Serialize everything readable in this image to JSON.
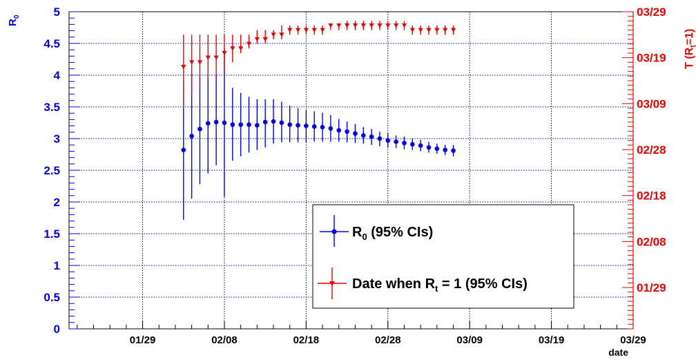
{
  "colors": {
    "blue": "#0000ee",
    "red": "#ee0000",
    "black": "#000000",
    "grid": "#000000"
  },
  "chart_data": {
    "type": "scatter",
    "title": "",
    "xlabel": "date",
    "ylabel_left": "R0",
    "ylabel_right": "T (Rt=1)",
    "x_ticks": [
      "01/29",
      "02/08",
      "02/18",
      "02/28",
      "03/09",
      "03/19",
      "03/29"
    ],
    "x_range": [
      "01/20",
      "03/29"
    ],
    "y_left_range": [
      0,
      5
    ],
    "y_left_ticks": [
      "0",
      "0.5",
      "1",
      "1.5",
      "2",
      "2.5",
      "3",
      "3.5",
      "4",
      "4.5",
      "5"
    ],
    "y_right_range": [
      "01/20",
      "03/29"
    ],
    "y_right_ticks": [
      "01/29",
      "02/08",
      "02/18",
      "02/28",
      "03/09",
      "03/19",
      "03/29"
    ],
    "grid": true,
    "legend_position": "bottom-right",
    "legend": [
      {
        "label": "R",
        "sub": "0",
        "suffix": " (95% CIs)",
        "color": "#0000ee",
        "marker": "circle"
      },
      {
        "label": "Date when R",
        "sub": "t",
        "suffix": " = 1 (95% CIs)",
        "color": "#ee0000",
        "marker": "triangle-down"
      }
    ],
    "series": [
      {
        "name": "R0 (95% CIs)",
        "axis": "left",
        "x": [
          "02/03",
          "02/04",
          "02/05",
          "02/06",
          "02/07",
          "02/08",
          "02/09",
          "02/10",
          "02/11",
          "02/12",
          "02/13",
          "02/14",
          "02/15",
          "02/16",
          "02/17",
          "02/18",
          "02/19",
          "02/20",
          "02/21",
          "02/22",
          "02/23",
          "02/24",
          "02/25",
          "02/26",
          "02/27",
          "02/28",
          "02/29",
          "03/01",
          "03/02",
          "03/03",
          "03/04",
          "03/05",
          "03/06",
          "03/07"
        ],
        "y": [
          2.82,
          3.04,
          3.15,
          3.24,
          3.26,
          3.25,
          3.22,
          3.22,
          3.22,
          3.21,
          3.26,
          3.27,
          3.25,
          3.22,
          3.21,
          3.2,
          3.19,
          3.18,
          3.16,
          3.13,
          3.11,
          3.08,
          3.05,
          3.03,
          3.0,
          2.97,
          2.95,
          2.93,
          2.91,
          2.89,
          2.86,
          2.84,
          2.82,
          2.81
        ],
        "lo": [
          1.72,
          2.05,
          2.28,
          2.45,
          2.58,
          2.08,
          2.65,
          2.72,
          2.78,
          2.82,
          2.86,
          2.92,
          2.94,
          2.94,
          2.94,
          2.94,
          2.95,
          2.95,
          2.95,
          2.95,
          2.94,
          2.93,
          2.92,
          2.9,
          2.88,
          2.86,
          2.85,
          2.83,
          2.82,
          2.8,
          2.78,
          2.76,
          2.74,
          2.72
        ],
        "hi": [
          3.93,
          4.02,
          4.02,
          4.02,
          4.02,
          4.42,
          3.8,
          3.72,
          3.66,
          3.62,
          3.62,
          3.62,
          3.58,
          3.52,
          3.48,
          3.45,
          3.43,
          3.41,
          3.37,
          3.31,
          3.27,
          3.23,
          3.18,
          3.15,
          3.11,
          3.08,
          3.05,
          3.03,
          3.0,
          2.98,
          2.95,
          2.92,
          2.9,
          2.9
        ]
      },
      {
        "name": "Date when Rt = 1 (95% CIs)",
        "axis": "right",
        "x": [
          "02/03",
          "02/04",
          "02/05",
          "02/06",
          "02/07",
          "02/08",
          "02/09",
          "02/10",
          "02/11",
          "02/12",
          "02/13",
          "02/14",
          "02/15",
          "02/16",
          "02/17",
          "02/18",
          "02/19",
          "02/20",
          "02/21",
          "02/22",
          "02/23",
          "02/24",
          "02/25",
          "02/26",
          "02/27",
          "02/28",
          "02/29",
          "03/01",
          "03/02",
          "03/03",
          "03/04",
          "03/05",
          "03/06",
          "03/07"
        ],
        "y": [
          "03/17",
          "03/18",
          "03/18",
          "03/19",
          "03/19",
          "03/20",
          "03/21",
          "03/21",
          "03/22",
          "03/23",
          "03/23",
          "03/24",
          "03/24",
          "03/25",
          "03/25",
          "03/25",
          "03/25",
          "03/25",
          "03/26",
          "03/26",
          "03/26",
          "03/26",
          "03/26",
          "03/26",
          "03/26",
          "03/26",
          "03/26",
          "03/26",
          "03/25",
          "03/25",
          "03/25",
          "03/25",
          "03/25",
          "03/25"
        ],
        "lo": [
          "03/08",
          "03/11",
          "03/13",
          "03/14",
          "03/15",
          "03/16",
          "03/18",
          "03/20",
          "03/21",
          "03/22",
          "03/22",
          "03/23",
          "03/23",
          "03/24",
          "03/24",
          "03/24",
          "03/24",
          "03/24",
          "03/25",
          "03/25",
          "03/25",
          "03/25",
          "03/25",
          "03/25",
          "03/25",
          "03/25",
          "03/25",
          "03/25",
          "03/24",
          "03/24",
          "03/24",
          "03/24",
          "03/24",
          "03/24"
        ],
        "hi": [
          "03/24",
          "03/24",
          "03/24",
          "03/24",
          "03/24",
          "03/24",
          "03/24",
          "03/24",
          "03/24",
          "03/25",
          "03/25",
          "03/25",
          "03/26",
          "03/26",
          "03/26",
          "03/26",
          "03/26",
          "03/26",
          "03/26",
          "03/26",
          "03/27",
          "03/27",
          "03/27",
          "03/27",
          "03/27",
          "03/27",
          "03/27",
          "03/27",
          "03/26",
          "03/26",
          "03/26",
          "03/26",
          "03/26",
          "03/26"
        ]
      }
    ]
  }
}
